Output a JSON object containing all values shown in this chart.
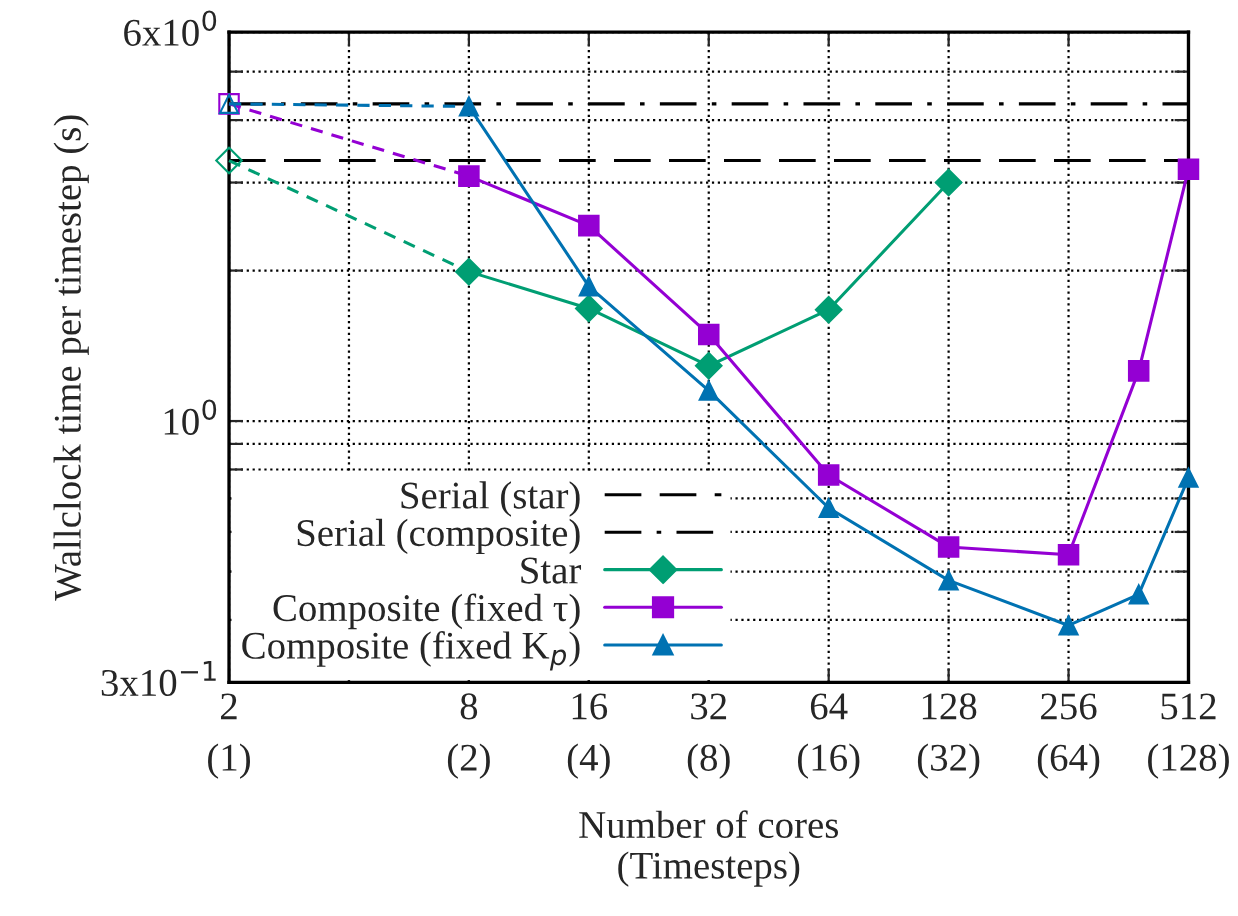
{
  "chart_data": {
    "type": "line",
    "xlabel": "Number of cores\n(Timesteps)",
    "ylabel": "Wallclock time per timestep (s)",
    "log": "xy",
    "xlim": [
      2,
      512
    ],
    "xticks": [
      2,
      {
        "value": 4,
        "label": null
      },
      8,
      16,
      32,
      64,
      128,
      256,
      512
    ],
    "annotations": [
      "(1)",
      "(2)",
      "(4)",
      "(8)",
      "(16)",
      "(32)",
      "(64)",
      "(128)"
    ],
    "ylim": [
      0.3,
      6
    ],
    "yticks": [
      {
        "value": 0.3,
        "label": "3x10$^{−1}$"
      },
      {
        "value": 0.4,
        "label": null
      },
      {
        "value": 0.5,
        "label": null
      },
      {
        "value": 0.6,
        "label": null
      },
      {
        "value": 0.7,
        "label": null
      },
      {
        "value": 0.8,
        "label": null
      },
      {
        "value": 0.9,
        "label": null
      },
      {
        "value": 1,
        "label": "10$^{0}$"
      },
      {
        "value": 2,
        "label": null
      },
      {
        "value": 3,
        "label": null
      },
      {
        "value": 4,
        "label": null
      },
      {
        "value": 5,
        "label": null
      },
      {
        "value": 6,
        "label": "6x10$^{0}$"
      }
    ],
    "grid": true,
    "legend": "bottom left",
    "ref_lines": [
      {
        "axis": "y",
        "value": 3.32,
        "label": "Serial (star)",
        "color": "#000000",
        "line_style": "dashed"
      },
      {
        "axis": "y",
        "value": 4.31,
        "label": "Serial (composite)",
        "color": "#000000",
        "line_style": "dashdot"
      }
    ],
    "series": [
      {
        "name": "Star",
        "color": "#009e73",
        "marker": "diamond",
        "line_style": "solid",
        "x": [
          8,
          16,
          32,
          64,
          128
        ],
        "values": [
          1.99,
          1.68,
          1.29,
          1.67,
          3.0
        ]
      },
      {
        "name": "Composite (fixed τ)",
        "color": "#9400d3",
        "marker": "square",
        "line_style": "solid",
        "x": [
          8,
          16,
          32,
          64,
          128,
          256,
          384,
          512
        ],
        "values": [
          3.09,
          2.46,
          1.49,
          0.78,
          0.56,
          0.54,
          1.26,
          3.19
        ]
      },
      {
        "name": "Composite (fixed K$_{p}$)",
        "color": "#0072b2",
        "marker": "triangle",
        "line_style": "solid",
        "x": [
          8,
          16,
          32,
          64,
          128,
          256,
          384,
          512
        ],
        "values": [
          4.26,
          1.86,
          1.15,
          0.67,
          0.48,
          0.39,
          0.45,
          0.77
        ]
      },
      {
        "color": "#009e73",
        "marker": "diamond",
        "line_style": "dashed",
        "x": [
          2,
          8
        ],
        "values": [
          3.32,
          1.99
        ]
      },
      {
        "color": "#9400d3",
        "marker": "square",
        "line_style": "dashed",
        "x": [
          2,
          8
        ],
        "values": [
          4.31,
          3.09
        ]
      },
      {
        "color": "#0072b2",
        "marker": "triangle",
        "line_style": "dashed",
        "x": [
          2,
          8
        ],
        "values": [
          4.31,
          4.26
        ]
      }
    ]
  }
}
